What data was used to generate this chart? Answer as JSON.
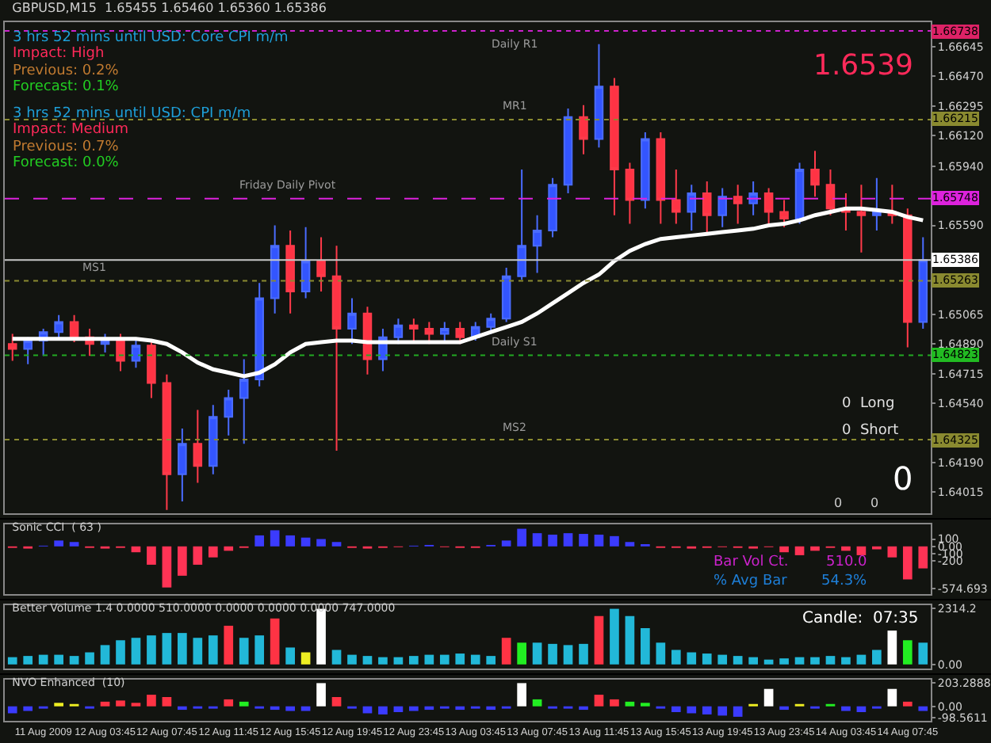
{
  "chart_data": [
    {
      "type": "candlestick",
      "title": "GBPUSD,M15  1.65455 1.65460 1.65360 1.65386",
      "ohlc": [
        [
          1.6489,
          1.6495,
          1.6479,
          1.6486
        ],
        [
          1.6486,
          1.6493,
          1.6477,
          1.6491
        ],
        [
          1.6491,
          1.6498,
          1.6482,
          1.6496
        ],
        [
          1.6496,
          1.6506,
          1.6491,
          1.6502
        ],
        [
          1.6502,
          1.6506,
          1.649,
          1.6493
        ],
        [
          1.6493,
          1.6498,
          1.6482,
          1.6489
        ],
        [
          1.6489,
          1.6495,
          1.6484,
          1.6491
        ],
        [
          1.6491,
          1.6495,
          1.6473,
          1.6479
        ],
        [
          1.6479,
          1.6491,
          1.6475,
          1.6488
        ],
        [
          1.6488,
          1.6491,
          1.6457,
          1.6466
        ],
        [
          1.6466,
          1.6471,
          1.6391,
          1.6412
        ],
        [
          1.6412,
          1.6439,
          1.6396,
          1.643
        ],
        [
          1.643,
          1.645,
          1.6407,
          1.6417
        ],
        [
          1.6417,
          1.6453,
          1.6412,
          1.6446
        ],
        [
          1.6446,
          1.6462,
          1.6435,
          1.6457
        ],
        [
          1.6457,
          1.648,
          1.643,
          1.6468
        ],
        [
          1.6468,
          1.6525,
          1.6464,
          1.6516
        ],
        [
          1.6516,
          1.6559,
          1.6507,
          1.6547
        ],
        [
          1.6547,
          1.6556,
          1.6507,
          1.652
        ],
        [
          1.652,
          1.6558,
          1.6516,
          1.6538
        ],
        [
          1.6538,
          1.6552,
          1.652,
          1.6529
        ],
        [
          1.6529,
          1.6547,
          1.6426,
          1.6498
        ],
        [
          1.6498,
          1.6516,
          1.6489,
          1.6507
        ],
        [
          1.6507,
          1.6511,
          1.6471,
          1.648
        ],
        [
          1.648,
          1.6498,
          1.6473,
          1.6493
        ],
        [
          1.6493,
          1.6504,
          1.6489,
          1.65
        ],
        [
          1.65,
          1.6504,
          1.6491,
          1.6498
        ],
        [
          1.6498,
          1.6502,
          1.6489,
          1.6495
        ],
        [
          1.6495,
          1.6502,
          1.649,
          1.6498
        ],
        [
          1.6498,
          1.6502,
          1.6489,
          1.6493
        ],
        [
          1.6493,
          1.6502,
          1.6491,
          1.6499
        ],
        [
          1.6499,
          1.6507,
          1.6495,
          1.6504
        ],
        [
          1.6504,
          1.6534,
          1.6502,
          1.6529
        ],
        [
          1.6529,
          1.6592,
          1.6527,
          1.6547
        ],
        [
          1.6547,
          1.6565,
          1.6531,
          1.6556
        ],
        [
          1.6556,
          1.6587,
          1.6552,
          1.6583
        ],
        [
          1.6583,
          1.6628,
          1.6578,
          1.6623
        ],
        [
          1.6623,
          1.663,
          1.6601,
          1.661
        ],
        [
          1.661,
          1.6666,
          1.6605,
          1.6641
        ],
        [
          1.6641,
          1.6646,
          1.6565,
          1.6592
        ],
        [
          1.6592,
          1.6596,
          1.656,
          1.6574
        ],
        [
          1.6574,
          1.6614,
          1.6569,
          1.661
        ],
        [
          1.661,
          1.6614,
          1.656,
          1.6574
        ],
        [
          1.6574,
          1.6592,
          1.656,
          1.6567
        ],
        [
          1.6567,
          1.6583,
          1.6556,
          1.6578
        ],
        [
          1.6578,
          1.6585,
          1.6554,
          1.6565
        ],
        [
          1.6565,
          1.6581,
          1.6558,
          1.6576
        ],
        [
          1.6576,
          1.6583,
          1.656,
          1.6572
        ],
        [
          1.6572,
          1.6585,
          1.6565,
          1.6578
        ],
        [
          1.6578,
          1.6581,
          1.656,
          1.6567
        ],
        [
          1.6567,
          1.6574,
          1.6558,
          1.6563
        ],
        [
          1.6563,
          1.6596,
          1.656,
          1.6592
        ],
        [
          1.6592,
          1.6603,
          1.6576,
          1.6583
        ],
        [
          1.6583,
          1.6592,
          1.6565,
          1.6569
        ],
        [
          1.6569,
          1.6578,
          1.6556,
          1.6567
        ],
        [
          1.6567,
          1.6583,
          1.6543,
          1.6565
        ],
        [
          1.6565,
          1.6587,
          1.6556,
          1.6567
        ],
        [
          1.6567,
          1.6583,
          1.656,
          1.6565
        ],
        [
          1.6565,
          1.6569,
          1.6487,
          1.6502
        ],
        [
          1.6502,
          1.6552,
          1.6498,
          1.65386
        ]
      ],
      "series": [
        {
          "type": "line",
          "color": "#ffffff",
          "values": [
            1.6492,
            1.6492,
            1.6492,
            1.6492,
            1.6492,
            1.6492,
            1.6492,
            1.6492,
            1.6492,
            1.6491,
            1.6489,
            1.6484,
            1.6478,
            1.6474,
            1.6472,
            1.647,
            1.6472,
            1.6477,
            1.6484,
            1.6489,
            1.649,
            1.6491,
            1.6491,
            1.649,
            1.649,
            1.649,
            1.649,
            1.649,
            1.649,
            1.649,
            1.6493,
            1.6496,
            1.6499,
            1.6502,
            1.6507,
            1.6513,
            1.6519,
            1.6525,
            1.653,
            1.6538,
            1.6544,
            1.6548,
            1.6551,
            1.6552,
            1.6553,
            1.6554,
            1.6555,
            1.6556,
            1.6557,
            1.6559,
            1.656,
            1.6562,
            1.6565,
            1.6567,
            1.6569,
            1.6569,
            1.6568,
            1.6567,
            1.6564,
            1.6562
          ]
        }
      ],
      "ylim": [
        1.6389,
        1.6679
      ],
      "yticks": [
        1.64015,
        {
          "value": 1.6419,
          "label": "1.64190"
        },
        {
          "value": 1.6454,
          "label": "1.64540"
        },
        1.64715,
        {
          "value": 1.6489,
          "label": "1.64890"
        },
        1.65065,
        {
          "value": 1.6559,
          "label": "1.65590"
        },
        {
          "value": 1.6594,
          "label": "1.65940"
        },
        {
          "value": 1.6612,
          "label": "1.66120"
        },
        1.66295,
        {
          "value": 1.6647,
          "label": "1.66470"
        },
        1.66645
      ],
      "ref_lines": [
        {
          "axis": "y",
          "value": 1.66738,
          "label": "Daily R1",
          "color": "#cc22cc",
          "line_style": "dotted"
        },
        {
          "axis": "y",
          "value": 1.66215,
          "label": "MR1",
          "color": "#8a8a30",
          "line_style": "dotted"
        },
        {
          "axis": "y",
          "value": 1.65748,
          "label": "Friday Daily Pivot",
          "color": "#dd22dd",
          "line_style": "dashed"
        },
        {
          "axis": "y",
          "value": 1.65263,
          "label": "MS1",
          "color": "#8a8a30",
          "line_style": "dotted"
        },
        {
          "axis": "y",
          "value": 1.64823,
          "label": "Daily S1",
          "color": "#22aa22",
          "line_style": "dotted"
        },
        {
          "axis": "y",
          "value": 1.64325,
          "label": "MS2",
          "color": "#8a8a30",
          "line_style": "dotted"
        },
        {
          "axis": "y",
          "value": 1.65386,
          "color": "#c8c8c8",
          "line_style": "solid"
        }
      ],
      "annotations": [
        "3 hrs 52 mins until USD: Core CPI m/m",
        "Impact: High",
        "Previous: 0.2%",
        "Forecast: 0.1%",
        "3 hrs 52 mins until USD: CPI m/m",
        "Impact: Medium",
        "Previous: 0.7%",
        "Forecast: 0.0%",
        "1.6539",
        "0  Long",
        "0  Short",
        "0",
        "0",
        "0",
        {
          "text": "1.66738",
          "y": 1.66738
        },
        {
          "text": "1.66215",
          "y": 1.66215
        },
        {
          "text": "1.65748",
          "y": 1.65748
        },
        {
          "text": "1.65263",
          "y": 1.65263
        },
        {
          "text": "1.64823",
          "y": 1.64823
        },
        {
          "text": "1.64325",
          "y": 1.64325
        },
        {
          "text": "1.65386",
          "y": 1.65386
        }
      ],
      "grid": false
    },
    {
      "type": "bar",
      "title": "Sonic CCI  ( 63 )",
      "values": [
        -20,
        -30,
        10,
        80,
        60,
        -20,
        -30,
        -20,
        -80,
        -250,
        -560,
        -400,
        -250,
        -150,
        -60,
        -20,
        150,
        220,
        150,
        120,
        100,
        60,
        -20,
        -30,
        -20,
        -10,
        10,
        20,
        -10,
        -20,
        -20,
        20,
        80,
        240,
        180,
        160,
        180,
        170,
        160,
        140,
        60,
        30,
        -20,
        -20,
        -30,
        -20,
        -10,
        -20,
        -30,
        -10,
        -80,
        -120,
        -60,
        -20,
        -60,
        -120,
        -40,
        -150,
        -450,
        -300
      ],
      "colors": [
        "#ff3355",
        "#ff3355",
        "#3b3bff",
        "#3b3bff",
        "#3b3bff",
        "#ff3355",
        "#ff3355",
        "#ff3355",
        "#ff3355",
        "#ff3355",
        "#ff3355",
        "#ff3355",
        "#ff3355",
        "#ff3355",
        "#ff3355",
        "#ff3355",
        "#3b3bff",
        "#3b3bff",
        "#3b3bff",
        "#3b3bff",
        "#3b3bff",
        "#3b3bff",
        "#ff3355",
        "#ff3355",
        "#ff3355",
        "#ff3355",
        "#3b3bff",
        "#3b3bff",
        "#ff3355",
        "#ff3355",
        "#ff3355",
        "#3b3bff",
        "#3b3bff",
        "#3b3bff",
        "#3b3bff",
        "#3b3bff",
        "#3b3bff",
        "#3b3bff",
        "#3b3bff",
        "#3b3bff",
        "#3b3bff",
        "#3b3bff",
        "#ff3355",
        "#ff3355",
        "#ff3355",
        "#ff3355",
        "#ff3355",
        "#ff3355",
        "#ff3355",
        "#ff3355",
        "#ff3355",
        "#ff3355",
        "#ff3355",
        "#ff3355",
        "#ff3355",
        "#ff3355",
        "#ff3355",
        "#ff3355",
        "#ff3355",
        "#ff3355"
      ],
      "ylim": [
        -650,
        300
      ],
      "yticks": [
        100,
        {
          "value": 0,
          "label": "0.00"
        },
        -100,
        -200,
        -574.693
      ],
      "annotations": [
        "Bar Vol Ct.",
        "510.0",
        "% Avg Bar",
        "54.3%"
      ],
      "grid": false
    },
    {
      "type": "bar",
      "title": "Better Volume 1.4 0.0000 510.0000 0.0000 0.0000 0.0000 747.0000",
      "values": [
        300,
        350,
        400,
        400,
        350,
        500,
        800,
        1000,
        1100,
        1200,
        1300,
        1300,
        1100,
        1200,
        1600,
        1100,
        1200,
        1900,
        700,
        500,
        2300,
        600,
        400,
        350,
        300,
        300,
        350,
        400,
        400,
        450,
        400,
        350,
        1100,
        900,
        900,
        850,
        800,
        850,
        2000,
        2300,
        2000,
        1500,
        900,
        600,
        500,
        450,
        400,
        350,
        300,
        200,
        250,
        300,
        300,
        350,
        300,
        400,
        600,
        1400,
        1000,
        900
      ],
      "colors": [
        "#22b8d8",
        "#22b8d8",
        "#22b8d8",
        "#22b8d8",
        "#22b8d8",
        "#22b8d8",
        "#22b8d8",
        "#22b8d8",
        "#22b8d8",
        "#22b8d8",
        "#22b8d8",
        "#22b8d8",
        "#22b8d8",
        "#22b8d8",
        "#ff3344",
        "#22b8d8",
        "#22b8d8",
        "#ff3344",
        "#22b8d8",
        "#eeee22",
        "#ffffff",
        "#22b8d8",
        "#22b8d8",
        "#22b8d8",
        "#22b8d8",
        "#22b8d8",
        "#22b8d8",
        "#22b8d8",
        "#22b8d8",
        "#22b8d8",
        "#22b8d8",
        "#22b8d8",
        "#ff3344",
        "#22ee22",
        "#22b8d8",
        "#22b8d8",
        "#22b8d8",
        "#22b8d8",
        "#ff3344",
        "#22b8d8",
        "#22b8d8",
        "#22b8d8",
        "#22b8d8",
        "#22b8d8",
        "#22b8d8",
        "#22b8d8",
        "#22b8d8",
        "#22b8d8",
        "#22b8d8",
        "#22b8d8",
        "#22b8d8",
        "#22b8d8",
        "#22b8d8",
        "#22b8d8",
        "#22b8d8",
        "#22b8d8",
        "#22b8d8",
        "#ffffff",
        "#22ee22",
        "#22b8d8"
      ],
      "ylim": [
        -170,
        2450
      ],
      "yticks": [
        2314.2,
        {
          "value": 0,
          "label": "0.00"
        }
      ],
      "annotations": [
        "Candle:  07:35"
      ],
      "grid": false
    },
    {
      "type": "bar",
      "title": "NVO Enhanced  (10)",
      "categories": [
        null,
        null,
        "11 Aug 2009",
        null,
        null,
        null,
        "12 Aug 03:45",
        null,
        null,
        null,
        "12 Aug 07:45",
        null,
        null,
        null,
        "12 Aug 11:45",
        null,
        null,
        null,
        "12 Aug 15:45",
        null,
        null,
        null,
        "12 Aug 19:45",
        null,
        null,
        null,
        "12 Aug 23:45",
        null,
        null,
        null,
        "13 Aug 03:45",
        null,
        null,
        null,
        "13 Aug 07:45",
        null,
        null,
        null,
        "13 Aug 11:45",
        null,
        null,
        null,
        "13 Aug 15:45",
        null,
        null,
        null,
        "13 Aug 19:45",
        null,
        null,
        null,
        "13 Aug 23:45",
        null,
        null,
        null,
        "14 Aug 03:45",
        null,
        null,
        null,
        "14 Aug 07:45",
        null
      ],
      "values": [
        -60,
        -40,
        -20,
        30,
        20,
        -20,
        40,
        50,
        30,
        100,
        80,
        -30,
        -20,
        -20,
        60,
        40,
        -20,
        -30,
        -40,
        -40,
        200,
        80,
        -20,
        -60,
        -70,
        -50,
        -40,
        -30,
        -20,
        -30,
        -20,
        -30,
        -20,
        200,
        60,
        -20,
        -20,
        -30,
        100,
        60,
        40,
        30,
        -20,
        -50,
        -60,
        -70,
        -80,
        -90,
        20,
        150,
        -30,
        20,
        -20,
        20,
        -40,
        -50,
        -20,
        150,
        40,
        -40
      ],
      "colors": [
        "#3b3bff",
        "#3b3bff",
        "#3b3bff",
        "#eeee22",
        "#eeee22",
        "#3b3bff",
        "#ff3344",
        "#ff3344",
        "#ff3344",
        "#ff3344",
        "#ff3344",
        "#3b3bff",
        "#3b3bff",
        "#3b3bff",
        "#ff3344",
        "#22ee22",
        "#3b3bff",
        "#3b3bff",
        "#3b3bff",
        "#3b3bff",
        "#ffffff",
        "#ff3344",
        "#3b3bff",
        "#3b3bff",
        "#3b3bff",
        "#3b3bff",
        "#3b3bff",
        "#3b3bff",
        "#3b3bff",
        "#3b3bff",
        "#3b3bff",
        "#3b3bff",
        "#3b3bff",
        "#ffffff",
        "#22ee22",
        "#3b3bff",
        "#3b3bff",
        "#3b3bff",
        "#ff3344",
        "#ff3344",
        "#22ee22",
        "#22ee22",
        "#3b3bff",
        "#3b3bff",
        "#3b3bff",
        "#3b3bff",
        "#3b3bff",
        "#3b3bff",
        "#eeee22",
        "#ffffff",
        "#3b3bff",
        "#eeee22",
        "#3b3bff",
        "#22ee22",
        "#3b3bff",
        "#3b3bff",
        "#3b3bff",
        "#ffffff",
        "#ff3344",
        "#3b3bff"
      ],
      "ylim": [
        -125,
        230
      ],
      "yticks": [
        203.2888,
        {
          "value": 0,
          "label": "0.00"
        },
        -98.5611
      ],
      "grid": false
    }
  ]
}
